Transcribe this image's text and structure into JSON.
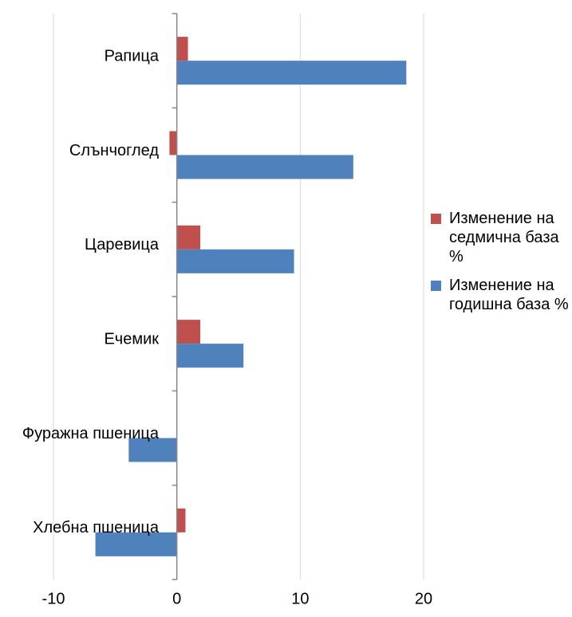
{
  "chart_data": {
    "type": "bar",
    "orientation": "horizontal",
    "categories": [
      "Рапица",
      "Слънчоглед",
      "Царевица",
      "Ечемик",
      "Фуражна пшеница",
      "Хлебна пшеница"
    ],
    "series": [
      {
        "name": "Изменение на седмична база %",
        "color": "#c0504d",
        "values": [
          0.9,
          -0.6,
          1.9,
          1.9,
          0,
          0.7
        ]
      },
      {
        "name": "Изменение на годишна база %",
        "color": "#4f81bd",
        "values": [
          18.6,
          14.3,
          9.5,
          5.4,
          -3.9,
          -6.6
        ]
      }
    ],
    "xlim": [
      -10,
      20
    ],
    "xticks": [
      -10,
      0,
      10,
      20
    ],
    "grid": true,
    "legend_position": "right"
  }
}
